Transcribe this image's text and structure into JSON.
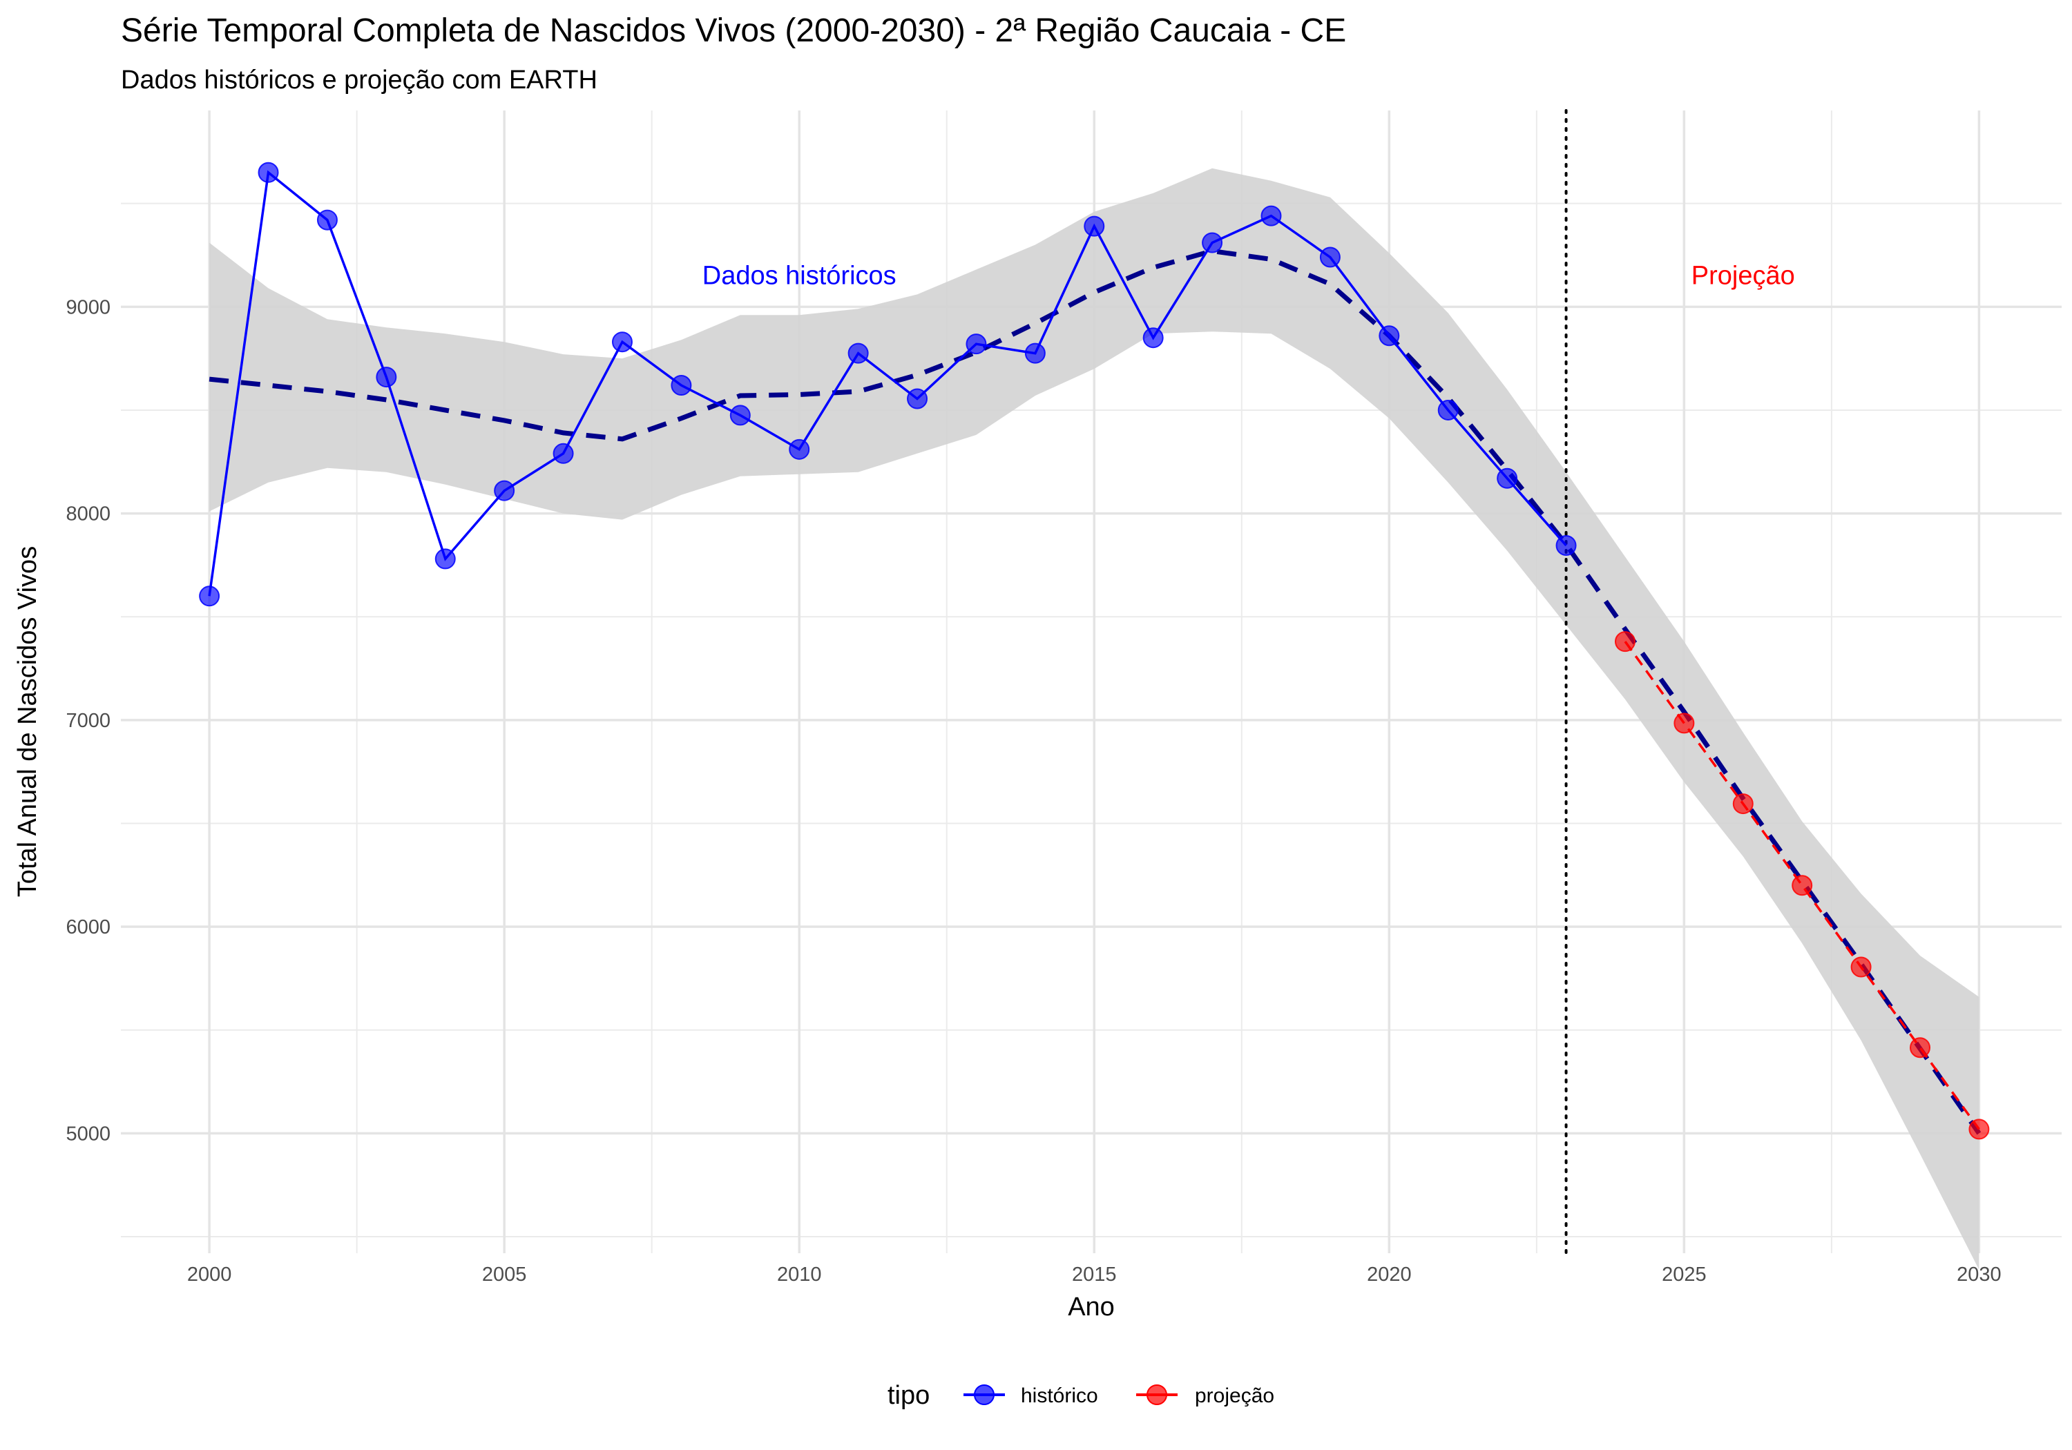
{
  "chart_data": {
    "type": "line",
    "title": "Série Temporal Completa de Nascidos Vivos (2000-2030) -  2ª Região Caucaia - CE",
    "subtitle": "Dados históricos e projeção com EARTH",
    "xlabel": "Ano",
    "ylabel": "Total Anual de Nascidos Vivos",
    "xlim": [
      1998.5,
      2031.4
    ],
    "ylim": [
      4420,
      9950
    ],
    "x_ticks": [
      2000,
      2005,
      2010,
      2015,
      2020,
      2025,
      2030
    ],
    "x_tick_labels": [
      "2000",
      "2005",
      "2010",
      "2015",
      "2020",
      "2025",
      "2030"
    ],
    "y_ticks": [
      5000,
      6000,
      7000,
      8000,
      9000
    ],
    "y_tick_labels": [
      "5000",
      "6000",
      "7000",
      "8000",
      "9000"
    ],
    "grid": true,
    "legend": {
      "title": "tipo",
      "position": "bottom",
      "entries": [
        "histórico",
        "projeção"
      ]
    },
    "series": [
      {
        "name": "histórico",
        "color": "#0000ff",
        "x": [
          2000,
          2001,
          2002,
          2003,
          2004,
          2005,
          2006,
          2007,
          2008,
          2009,
          2010,
          2011,
          2012,
          2013,
          2014,
          2015,
          2016,
          2017,
          2018,
          2019,
          2020,
          2021,
          2022,
          2023
        ],
        "y": [
          7600,
          9650,
          9420,
          8660,
          7780,
          8110,
          8290,
          8830,
          8620,
          8475,
          8310,
          8775,
          8555,
          8820,
          8775,
          9390,
          8850,
          9310,
          9440,
          9240,
          8860,
          8500,
          8170,
          7845
        ]
      },
      {
        "name": "projeção",
        "color": "#ff0000",
        "x": [
          2024,
          2025,
          2026,
          2027,
          2028,
          2029,
          2030
        ],
        "y": [
          7380,
          6985,
          6595,
          6200,
          5805,
          5415,
          5020
        ]
      }
    ],
    "trend": {
      "style": "dashed",
      "color": "#00008b",
      "x": [
        2000,
        2001,
        2002,
        2003,
        2004,
        2005,
        2006,
        2007,
        2008,
        2009,
        2010,
        2011,
        2012,
        2013,
        2014,
        2015,
        2016,
        2017,
        2018,
        2019,
        2020,
        2021,
        2022,
        2023,
        2024,
        2025,
        2026,
        2027,
        2028,
        2029,
        2030
      ],
      "y": [
        8650,
        8620,
        8590,
        8550,
        8500,
        8450,
        8390,
        8360,
        8460,
        8570,
        8575,
        8590,
        8670,
        8780,
        8920,
        9070,
        9190,
        9270,
        9230,
        9110,
        8860,
        8560,
        8210,
        7850,
        7440,
        7040,
        6620,
        6220,
        5820,
        5410,
        5000
      ],
      "band_upper": [
        9310,
        9090,
        8940,
        8900,
        8870,
        8830,
        8770,
        8750,
        8840,
        8960,
        8960,
        8990,
        9060,
        9180,
        9300,
        9460,
        9550,
        9670,
        9610,
        9530,
        9260,
        8970,
        8600,
        8200,
        7790,
        7380,
        6940,
        6510,
        6160,
        5860,
        5660
      ],
      "band_lower": [
        8010,
        8150,
        8220,
        8200,
        8140,
        8070,
        8000,
        7970,
        8090,
        8180,
        8190,
        8200,
        8290,
        8380,
        8570,
        8700,
        8870,
        8880,
        8870,
        8700,
        8460,
        8150,
        7820,
        7460,
        7100,
        6700,
        6340,
        5920,
        5450,
        4900,
        4340
      ]
    },
    "vline": {
      "x": 2023,
      "style": "dotted",
      "color": "#000000"
    },
    "annotations": [
      {
        "text": "Dados históricos",
        "x": 2010,
        "y": 9150,
        "color": "#0000ff"
      },
      {
        "text": "Projeção",
        "x": 2026,
        "y": 9150,
        "color": "#ff0000"
      }
    ]
  }
}
